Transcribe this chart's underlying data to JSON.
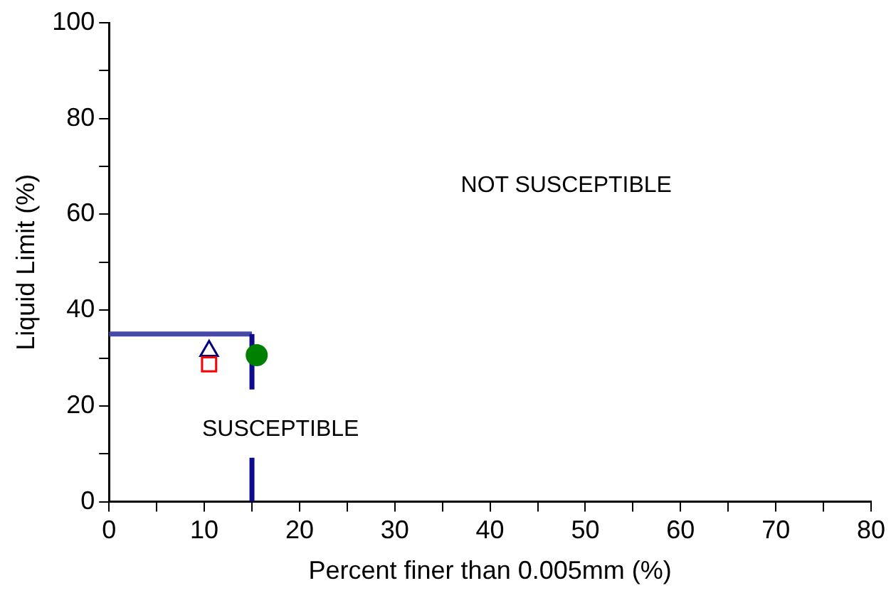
{
  "chart_data": {
    "type": "scatter",
    "xlabel": "Percent finer than 0.005mm (%)",
    "ylabel": "Liquid Limit (%)",
    "xlim": [
      0,
      80
    ],
    "ylim": [
      0,
      100
    ],
    "xticks": [
      0,
      {
        "value": 5,
        "label": null
      },
      10,
      {
        "value": 15,
        "label": null
      },
      20,
      {
        "value": 25,
        "label": null
      },
      30,
      {
        "value": 35,
        "label": null
      },
      40,
      {
        "value": 45,
        "label": null
      },
      50,
      {
        "value": 55,
        "label": null
      },
      60,
      {
        "value": 65,
        "label": null
      },
      70,
      {
        "value": 75,
        "label": null
      },
      80
    ],
    "yticks": [
      0,
      {
        "value": 10,
        "label": null
      },
      20,
      {
        "value": 30,
        "label": null
      },
      40,
      {
        "value": 50,
        "label": null
      },
      60,
      {
        "value": 70,
        "label": null
      },
      80,
      {
        "value": 90,
        "label": null
      },
      100
    ],
    "grid": false,
    "legend": false,
    "series": [
      {
        "type": "line",
        "color": "#4848a8",
        "x": [
          0,
          15
        ],
        "values": [
          35,
          35
        ],
        "marker": "none",
        "line_style": "solid"
      },
      {
        "type": "line",
        "color": "#0c0c8c",
        "x": [
          15,
          15
        ],
        "values": [
          35,
          0
        ],
        "marker": "none",
        "line_style": "dashed"
      },
      {
        "type": "scatter",
        "color": "#000080",
        "x": [
          10.5
        ],
        "values": [
          31.5
        ],
        "marker": "triangle"
      },
      {
        "type": "scatter",
        "color": "#ff0000",
        "x": [
          10.5
        ],
        "values": [
          28.7
        ],
        "marker": "square"
      },
      {
        "type": "scatter",
        "color": "#008000",
        "x": [
          15.5
        ],
        "values": [
          30.6
        ],
        "marker": "circle"
      }
    ],
    "annotations": [
      "NOT SUSCEPTIBLE",
      "SUSCEPTIBLE"
    ]
  }
}
